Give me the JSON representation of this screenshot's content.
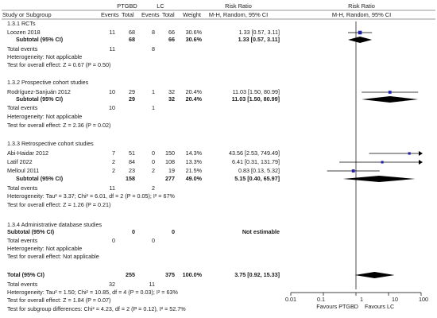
{
  "header": {
    "study": "Study or Subgroup",
    "group1": "PTGBD",
    "group2": "LC",
    "events": "Events",
    "total": "Total",
    "weight": "Weight",
    "rr_title": "Risk Ratio",
    "rr_method": "M-H, Random, 95% CI",
    "plot_title": "Risk Ratio",
    "plot_method": "M-H, Random, 95% CI"
  },
  "chart_data": {
    "type": "forest",
    "scale": "log",
    "xlim": [
      0.01,
      100
    ],
    "xticks": [
      "0.01",
      "0.1",
      "1",
      "10",
      "100"
    ],
    "left_label": "Favours PTGBD",
    "right_label": "Favours LC",
    "subgroups": [
      {
        "title": "1.3.1 RCTs",
        "studies": [
          {
            "name": "Loozen 2018",
            "e1": "11",
            "n1": "68",
            "e2": "8",
            "n2": "66",
            "weight": "30.6%",
            "ci": "1.33 [0.57, 3.11]",
            "rr": 1.33,
            "lo": 0.57,
            "hi": 3.11
          }
        ],
        "subtotal": {
          "label": "Subtotal (95% CI)",
          "n1": "68",
          "n2": "66",
          "weight": "30.6%",
          "ci": "1.33 [0.57, 3.11]",
          "rr": 1.33,
          "lo": 0.57,
          "hi": 3.11
        },
        "events": {
          "label": "Total events",
          "e1": "11",
          "e2": "8"
        },
        "heterogeneity": "Heterogeneity: Not applicable",
        "overall": "Test for overall effect: Z = 0.67 (P = 0.50)"
      },
      {
        "title": "1.3.2 Prospective cohort studies",
        "studies": [
          {
            "name": "Rodríguez-Sanjuán 2012",
            "e1": "10",
            "n1": "29",
            "e2": "1",
            "n2": "32",
            "weight": "20.4%",
            "ci": "11.03 [1.50, 80.99]",
            "rr": 11.03,
            "lo": 1.5,
            "hi": 80.99
          }
        ],
        "subtotal": {
          "label": "Subtotal (95% CI)",
          "n1": "29",
          "n2": "32",
          "weight": "20.4%",
          "ci": "11.03 [1.50, 80.99]",
          "rr": 11.03,
          "lo": 1.5,
          "hi": 80.99
        },
        "events": {
          "label": "Total events",
          "e1": "10",
          "e2": "1"
        },
        "heterogeneity": "Heterogeneity: Not applicable",
        "overall": "Test for overall effect: Z = 2.36 (P = 0.02)"
      },
      {
        "title": "1.3.3 Retrospective cohort studies",
        "studies": [
          {
            "name": "Abi-Haidar 2012",
            "e1": "7",
            "n1": "51",
            "e2": "0",
            "n2": "150",
            "weight": "14.3%",
            "ci": "43.56 [2.53, 749.49]",
            "rr": 43.56,
            "lo": 2.53,
            "hi": 749.49
          },
          {
            "name": "Latif 2022",
            "e1": "2",
            "n1": "84",
            "e2": "0",
            "n2": "108",
            "weight": "13.3%",
            "ci": "6.41 [0.31, 131.79]",
            "rr": 6.41,
            "lo": 0.31,
            "hi": 131.79
          },
          {
            "name": "Melloul 2011",
            "e1": "2",
            "n1": "23",
            "e2": "2",
            "n2": "19",
            "weight": "21.5%",
            "ci": "0.83 [0.13, 5.32]",
            "rr": 0.83,
            "lo": 0.13,
            "hi": 5.32
          }
        ],
        "subtotal": {
          "label": "Subtotal (95% CI)",
          "n1": "158",
          "n2": "277",
          "weight": "49.0%",
          "ci": "5.15 [0.40, 65.97]",
          "rr": 5.15,
          "lo": 0.4,
          "hi": 65.97
        },
        "events": {
          "label": "Total events",
          "e1": "11",
          "e2": "2"
        },
        "heterogeneity": "Heterogeneity: Tau² = 3.37; Chi² = 6.01, df = 2 (P = 0.05); I² = 67%",
        "overall": "Test for overall effect: Z = 1.26 (P = 0.21)"
      },
      {
        "title": "1.3.4 Administrative database studies",
        "studies": [],
        "subtotal": {
          "label": "Subtotal (95% CI)",
          "n1": "0",
          "n2": "0",
          "weight": "",
          "ci": "Not estimable",
          "rr": null,
          "lo": null,
          "hi": null
        },
        "events": {
          "label": "Total events",
          "e1": "0",
          "e2": "0"
        },
        "heterogeneity": "Heterogeneity: Not applicable",
        "overall": "Test for overall effect: Not applicable"
      }
    ],
    "total": {
      "label": "Total (95% CI)",
      "n1": "255",
      "n2": "375",
      "weight": "100.0%",
      "ci": "3.75 [0.92, 15.33]",
      "rr": 3.75,
      "lo": 0.92,
      "hi": 15.33
    },
    "total_events": {
      "label": "Total events",
      "e1": "32",
      "e2": "11"
    },
    "total_heterogeneity": "Heterogeneity: Tau² = 1.50; Chi² = 10.85, df = 4 (P = 0.03); I² = 63%",
    "total_overall": "Test for overall effect: Z = 1.84 (P = 0.07)",
    "subgroup_diff": "Test for subgroup differences: Chi² = 4.23, df = 2 (P = 0.12), I² = 52.7%"
  },
  "colors": {
    "point": "#1f1fb0",
    "diamond": "#000000",
    "line": "#000000",
    "text": "#1a1a1a",
    "rule": "#333333"
  }
}
